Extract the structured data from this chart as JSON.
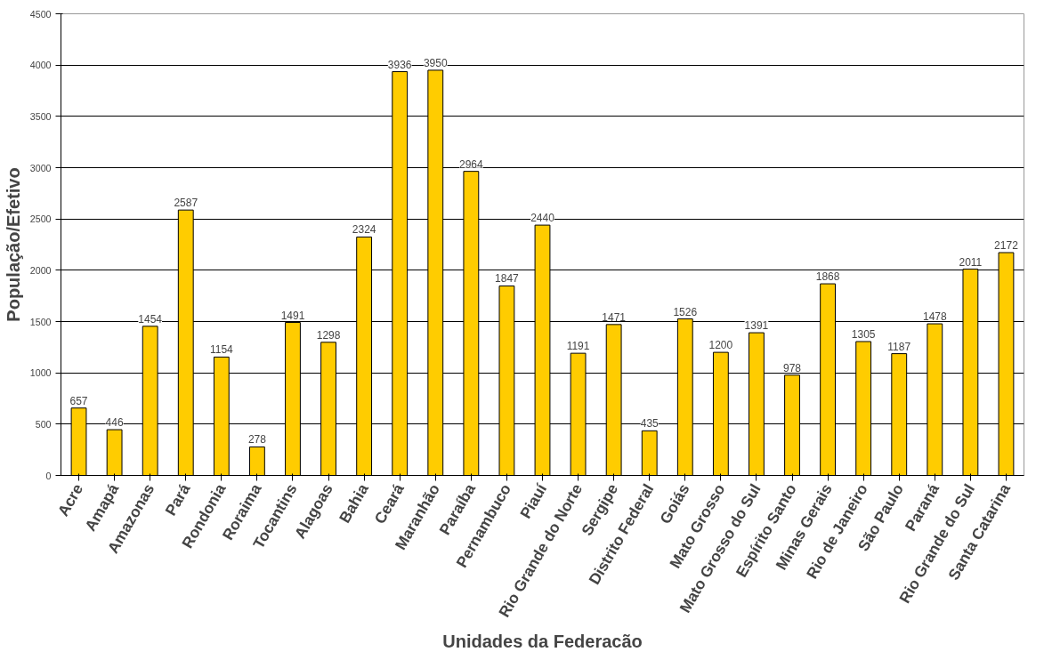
{
  "chart_data": {
    "type": "bar",
    "xlabel": "Unidades da Federacão",
    "ylabel": "População/Efetivo",
    "categories": [
      "Acre",
      "Amapá",
      "Amazonas",
      "Pará",
      "Rondonia",
      "Roraima",
      "Tocantins",
      "Alagoas",
      "Bahia",
      "Ceará",
      "Maranhão",
      "Paraíba",
      "Pernambuco",
      "Piauí",
      "Rio Grande do Norte",
      "Sergipe",
      "Distrito Federal",
      "Goiás",
      "Mato Grosso",
      "Mato Grosso do Sul",
      "Espírito Santo",
      "Minas Gerais",
      "Rio de Janeiro",
      "São Paulo",
      "Paraná",
      "Rio Grande do Sul",
      "Santa Catarina"
    ],
    "values": [
      657,
      446,
      1454,
      2587,
      1154,
      278,
      1491,
      1298,
      2324,
      3936,
      3950,
      2964,
      1847,
      2440,
      1191,
      1471,
      435,
      1526,
      1200,
      1391,
      978,
      1868,
      1305,
      1187,
      1478,
      2011,
      2172
    ],
    "color": "#ffcc00",
    "data_labels": true,
    "grid": "y",
    "ylim": [
      0,
      4500
    ],
    "yticks": [
      0,
      500,
      1000,
      1500,
      2000,
      2500,
      3000,
      3500,
      4000,
      4500
    ]
  }
}
